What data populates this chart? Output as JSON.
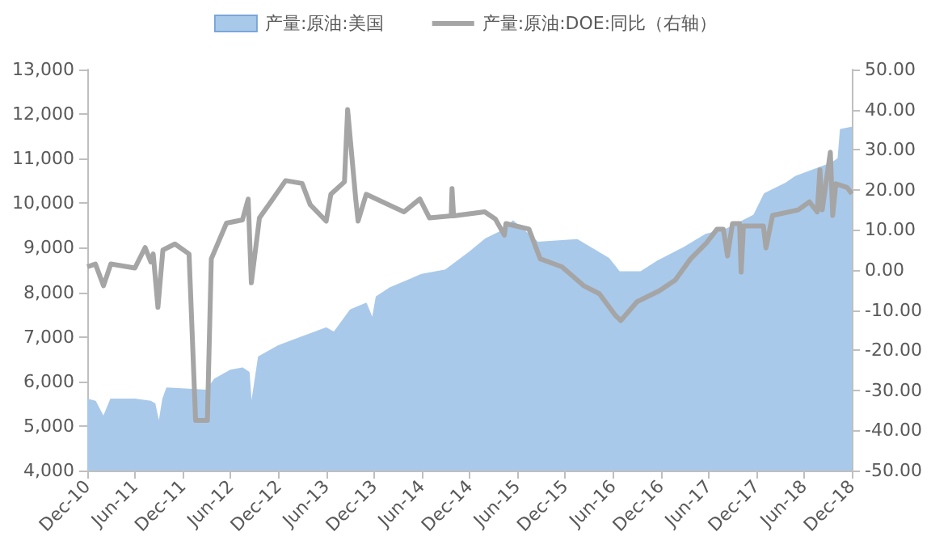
{
  "chart_data": {
    "type": "area",
    "xlim": [
      "2010-12-01",
      "2018-12-01"
    ],
    "xticks": [
      {
        "value": "2010-12-01",
        "label": "Dec-10"
      },
      {
        "value": "2011-06-01",
        "label": "Jun-11"
      },
      {
        "value": "2011-12-01",
        "label": "Dec-11"
      },
      {
        "value": "2012-06-01",
        "label": "Jun-12"
      },
      {
        "value": "2012-12-01",
        "label": "Dec-12"
      },
      {
        "value": "2013-06-01",
        "label": "Jun-13"
      },
      {
        "value": "2013-12-01",
        "label": "Dec-13"
      },
      {
        "value": "2014-06-01",
        "label": "Jun-14"
      },
      {
        "value": "2014-12-01",
        "label": "Dec-14"
      },
      {
        "value": "2015-06-01",
        "label": "Jun-15"
      },
      {
        "value": "2015-12-01",
        "label": "Dec-15"
      },
      {
        "value": "2016-06-01",
        "label": "Jun-16"
      },
      {
        "value": "2016-12-01",
        "label": "Dec-16"
      },
      {
        "value": "2017-06-01",
        "label": "Jun-17"
      },
      {
        "value": "2017-12-01",
        "label": "Dec-17"
      },
      {
        "value": "2018-06-01",
        "label": "Jun-18"
      },
      {
        "value": "2018-12-01",
        "label": "Dec-18"
      }
    ],
    "ylim": [
      4000,
      13000
    ],
    "yticks": [
      {
        "value": 4000,
        "label": "4,000"
      },
      {
        "value": 5000,
        "label": "5,000"
      },
      {
        "value": 6000,
        "label": "6,000"
      },
      {
        "value": 7000,
        "label": "7,000"
      },
      {
        "value": 8000,
        "label": "8,000"
      },
      {
        "value": 9000,
        "label": "9,000"
      },
      {
        "value": 10000,
        "label": "10,000"
      },
      {
        "value": 11000,
        "label": "11,000"
      },
      {
        "value": 12000,
        "label": "12,000"
      },
      {
        "value": 13000,
        "label": "13,000"
      }
    ],
    "y2lim": [
      -50,
      50
    ],
    "y2ticks": [
      {
        "value": -50,
        "label": "-50.00"
      },
      {
        "value": -40,
        "label": "-40.00"
      },
      {
        "value": -30,
        "label": "-30.00"
      },
      {
        "value": -20,
        "label": "-20.00"
      },
      {
        "value": -10,
        "label": "-10.00"
      },
      {
        "value": 0,
        "label": "0.00"
      },
      {
        "value": 10,
        "label": "10.00"
      },
      {
        "value": 20,
        "label": "20.00"
      },
      {
        "value": 30,
        "label": "30.00"
      },
      {
        "value": 40,
        "label": "40.00"
      },
      {
        "value": 50,
        "label": "50.00"
      }
    ],
    "legend": "top",
    "grid": false,
    "series": [
      {
        "name": "产量:原油:美国",
        "color": "#a9c9ea",
        "x": [
          "2010-12-01",
          "2011-01-01",
          "2011-02-01",
          "2011-03-01",
          "2011-06-01",
          "2011-08-01",
          "2011-08-16",
          "2011-09-01",
          "2011-09-16",
          "2011-10-01",
          "2012-03-01",
          "2012-04-01",
          "2012-06-01",
          "2012-07-16",
          "2012-08-10",
          "2012-08-19",
          "2012-09-16",
          "2012-12-01",
          "2013-03-01",
          "2013-06-01",
          "2013-07-01",
          "2013-09-01",
          "2013-11-01",
          "2013-11-25",
          "2013-12-10",
          "2014-02-01",
          "2014-06-01",
          "2014-09-01",
          "2014-12-01",
          "2015-02-01",
          "2015-04-19",
          "2015-05-16",
          "2015-08-19",
          "2016-01-16",
          "2016-05-16",
          "2016-06-25",
          "2016-09-16",
          "2016-11-19",
          "2017-03-01",
          "2017-05-22",
          "2017-08-10",
          "2017-11-22",
          "2018-01-01",
          "2018-03-25",
          "2018-05-01",
          "2018-06-16",
          "2018-09-16",
          "2018-10-10",
          "2018-10-19",
          "2018-12-01"
        ],
        "values": [
          5600,
          5550,
          5200,
          5600,
          5600,
          5550,
          5500,
          5050,
          5600,
          5850,
          5800,
          6050,
          6250,
          6300,
          6200,
          5450,
          6550,
          6800,
          7000,
          7200,
          7100,
          7600,
          7750,
          7400,
          7900,
          8100,
          8400,
          8500,
          8900,
          9200,
          9420,
          9600,
          9120,
          9180,
          8760,
          8460,
          8460,
          8700,
          9010,
          9300,
          9420,
          9730,
          10210,
          10450,
          10600,
          10700,
          10900,
          11000,
          11650,
          11700
        ]
      },
      {
        "name": "产量:原油:DOE:同比（右轴）",
        "type": "line",
        "axis": "y2",
        "color": "#a5a5a5",
        "x": [
          "2010-12-01",
          "2011-01-01",
          "2011-02-01",
          "2011-03-01",
          "2011-06-01",
          "2011-07-10",
          "2011-08-01",
          "2011-08-10",
          "2011-08-28",
          "2011-09-16",
          "2011-11-01",
          "2011-12-25",
          "2012-01-19",
          "2012-03-04",
          "2012-03-19",
          "2012-05-16",
          "2012-07-16",
          "2012-08-07",
          "2012-08-19",
          "2012-09-19",
          "2012-10-28",
          "2012-12-28",
          "2013-03-01",
          "2013-04-01",
          "2013-06-01",
          "2013-06-19",
          "2013-08-10",
          "2013-08-22",
          "2013-09-22",
          "2013-10-01",
          "2013-11-01",
          "2014-03-25",
          "2014-05-25",
          "2014-07-01",
          "2014-09-22",
          "2014-09-25",
          "2014-10-01",
          "2015-01-28",
          "2015-03-10",
          "2015-04-13",
          "2015-04-19",
          "2015-07-16",
          "2015-08-28",
          "2015-11-19",
          "2016-02-10",
          "2016-04-10",
          "2016-06-10",
          "2016-07-01",
          "2016-09-01",
          "2016-11-25",
          "2017-01-25",
          "2017-03-25",
          "2017-05-25",
          "2017-07-04",
          "2017-07-28",
          "2017-08-13",
          "2017-09-01",
          "2017-09-28",
          "2017-10-04",
          "2017-10-13",
          "2017-12-28",
          "2018-01-07",
          "2018-02-01",
          "2018-05-10",
          "2018-06-22",
          "2018-07-22",
          "2018-08-01",
          "2018-08-10",
          "2018-09-10",
          "2018-09-19",
          "2018-10-01",
          "2018-11-13",
          "2018-12-01"
        ],
        "values": [
          0.8,
          1.5,
          -3.9,
          1.5,
          0.5,
          5.6,
          2,
          4,
          -9.3,
          5,
          6.5,
          4,
          -37.5,
          -37.5,
          2.8,
          11.7,
          12.5,
          17.7,
          -3.2,
          13,
          16.6,
          22.3,
          21.6,
          16.3,
          12.2,
          18.9,
          22,
          40,
          17.7,
          12.2,
          18.9,
          14.5,
          17.7,
          13,
          13.5,
          20.3,
          13.5,
          14.5,
          12.7,
          8.7,
          11.6,
          10.2,
          2.8,
          0.8,
          -3.9,
          -5.9,
          -11.3,
          -12.6,
          -7.9,
          -5.2,
          -2.5,
          2.8,
          6.8,
          10.2,
          10.2,
          3.5,
          11.6,
          11.6,
          -0.5,
          11,
          11,
          5.5,
          13.6,
          15,
          17,
          14.5,
          25,
          15,
          29.4,
          13.6,
          21.5,
          20.6,
          19
        ]
      }
    ]
  }
}
